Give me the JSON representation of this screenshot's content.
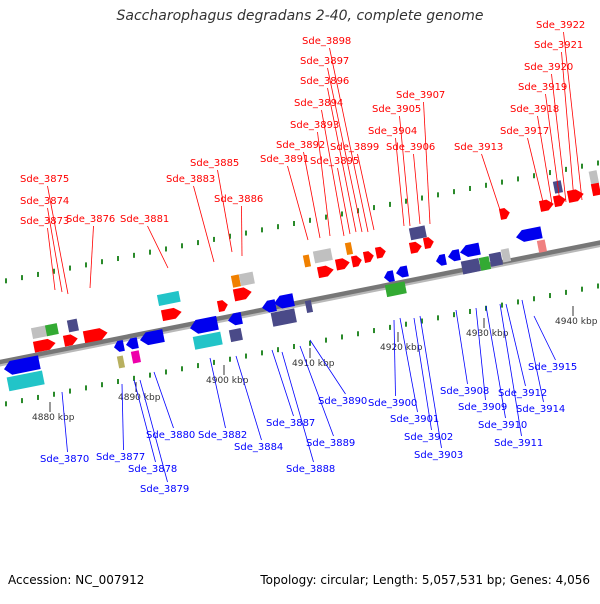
{
  "title": "Saccharophagus degradans 2-40, complete genome",
  "footer": {
    "accession": "Accession: NC_007912",
    "summary": "Topology: circular; Length: 5,057,531 bp; Genes: 4,056"
  },
  "colors": {
    "top_label": "#ff0000",
    "bottom_label": "#0000ff",
    "forward": "#ff0000",
    "reverse": "#0000ee",
    "cyan": "#22c4c8",
    "dark": "#4a4a88",
    "gray": "#c0c0c0",
    "orange": "#f08000",
    "green": "#33aa33",
    "yellow": "#b8b060",
    "magenta": "#ee00aa",
    "pink": "#f08080",
    "tick": "#2a8a2a"
  },
  "kbp_marks": [
    "4880 kbp",
    "4890 kbp",
    "4900 kbp",
    "4910 kbp",
    "4920 kbp",
    "4930 kbp",
    "4940 kbp"
  ],
  "top_labels": [
    "Sde_3873",
    "Sde_3874",
    "Sde_3875",
    "Sde_3876",
    "Sde_3881",
    "Sde_3883",
    "Sde_3885",
    "Sde_3886",
    "Sde_3891",
    "Sde_3892",
    "Sde_3893",
    "Sde_3894",
    "Sde_3895",
    "Sde_3896",
    "Sde_3897",
    "Sde_3898",
    "Sde_3899",
    "Sde_3904",
    "Sde_3905",
    "Sde_3906",
    "Sde_3907",
    "Sde_3913",
    "Sde_3917",
    "Sde_3918",
    "Sde_3919",
    "Sde_3920",
    "Sde_3921",
    "Sde_3922"
  ],
  "bottom_labels": [
    "Sde_3870",
    "Sde_3877",
    "Sde_3878",
    "Sde_3879",
    "Sde_3880",
    "Sde_3882",
    "Sde_3884",
    "Sde_3887",
    "Sde_3888",
    "Sde_3889",
    "Sde_3890",
    "Sde_3900",
    "Sde_3901",
    "Sde_3902",
    "Sde_3903",
    "Sde_3908",
    "Sde_3909",
    "Sde_3910",
    "Sde_3911",
    "Sde_3912",
    "Sde_3914",
    "Sde_3915"
  ]
}
